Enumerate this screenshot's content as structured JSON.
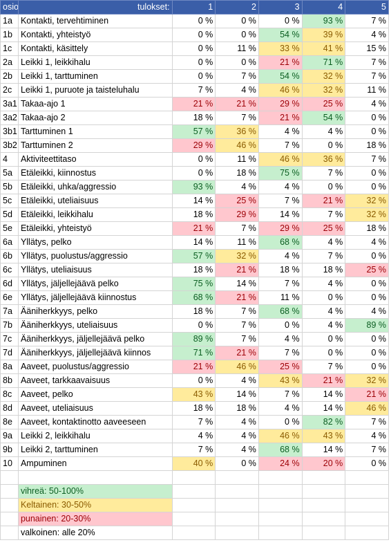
{
  "header": {
    "col_id": "osio",
    "col_label": "tulokset:",
    "cols": [
      "1",
      "2",
      "3",
      "4",
      "5"
    ]
  },
  "rows": [
    {
      "id": "1a",
      "name": "Kontakti, tervehtiminen",
      "v": [
        "0 %",
        "0 %",
        "0 %",
        "93 %",
        "7 %"
      ],
      "c": [
        "",
        "",
        "",
        "g",
        ""
      ]
    },
    {
      "id": "1b",
      "name": "Kontakti, yhteistyö",
      "v": [
        "0 %",
        "0 %",
        "54 %",
        "39 %",
        "4 %"
      ],
      "c": [
        "",
        "",
        "g",
        "y",
        ""
      ]
    },
    {
      "id": "1c",
      "name": "Kontakti, käsittely",
      "v": [
        "0 %",
        "11 %",
        "33 %",
        "41 %",
        "15 %"
      ],
      "c": [
        "",
        "",
        "y",
        "y",
        ""
      ]
    },
    {
      "id": "2a",
      "name": "Leikki 1, leikkihalu",
      "v": [
        "0 %",
        "0 %",
        "21 %",
        "71 %",
        "7 %"
      ],
      "c": [
        "",
        "",
        "r",
        "g",
        ""
      ]
    },
    {
      "id": "2b",
      "name": "Leikki 1, tarttuminen",
      "v": [
        "0 %",
        "7 %",
        "54 %",
        "32 %",
        "7 %"
      ],
      "c": [
        "",
        "",
        "g",
        "y",
        ""
      ]
    },
    {
      "id": "2c",
      "name": "Leikki 1, puruote ja taisteluhalu",
      "v": [
        "7 %",
        "4 %",
        "46 %",
        "32 %",
        "11 %"
      ],
      "c": [
        "",
        "",
        "y",
        "y",
        ""
      ]
    },
    {
      "id": "3a1",
      "name": "Takaa-ajo 1",
      "v": [
        "21 %",
        "21 %",
        "29 %",
        "25 %",
        "4 %"
      ],
      "c": [
        "r",
        "r",
        "r",
        "r",
        ""
      ]
    },
    {
      "id": "3a2",
      "name": "Takaa-ajo 2",
      "v": [
        "18 %",
        "7 %",
        "21 %",
        "54 %",
        "0 %"
      ],
      "c": [
        "",
        "",
        "r",
        "g",
        ""
      ]
    },
    {
      "id": "3b1",
      "name": "Tarttuminen 1",
      "v": [
        "57 %",
        "36 %",
        "4 %",
        "4 %",
        "0 %"
      ],
      "c": [
        "g",
        "y",
        "",
        "",
        ""
      ]
    },
    {
      "id": "3b2",
      "name": "Tarttuminen 2",
      "v": [
        "29 %",
        "46 %",
        "7 %",
        "0 %",
        "18 %"
      ],
      "c": [
        "r",
        "y",
        "",
        "",
        ""
      ]
    },
    {
      "id": "4",
      "name": "Aktiviteettitaso",
      "v": [
        "0 %",
        "11 %",
        "46 %",
        "36 %",
        "7 %"
      ],
      "c": [
        "",
        "",
        "y",
        "y",
        ""
      ]
    },
    {
      "id": "5a",
      "name": "Etäleikki, kiinnostus",
      "v": [
        "0 %",
        "18 %",
        "75 %",
        "7 %",
        "0 %"
      ],
      "c": [
        "",
        "",
        "g",
        "",
        ""
      ]
    },
    {
      "id": "5b",
      "name": "Etäleikki, uhka/aggressio",
      "v": [
        "93 %",
        "4 %",
        "4 %",
        "0 %",
        "0 %"
      ],
      "c": [
        "g",
        "",
        "",
        "",
        ""
      ]
    },
    {
      "id": "5c",
      "name": "Etäleikki, uteliaisuus",
      "v": [
        "14 %",
        "25 %",
        "7 %",
        "21 %",
        "32 %"
      ],
      "c": [
        "",
        "r",
        "",
        "r",
        "y"
      ]
    },
    {
      "id": "5d",
      "name": "Etäleikki, leikkihalu",
      "v": [
        "18 %",
        "29 %",
        "14 %",
        "7 %",
        "32 %"
      ],
      "c": [
        "",
        "r",
        "",
        "",
        "y"
      ]
    },
    {
      "id": "5e",
      "name": "Etäleikki, yhteistyö",
      "v": [
        "21 %",
        "7 %",
        "29 %",
        "25 %",
        "18 %"
      ],
      "c": [
        "r",
        "",
        "r",
        "r",
        ""
      ]
    },
    {
      "id": "6a",
      "name": "Yllätys, pelko",
      "v": [
        "14 %",
        "11 %",
        "68 %",
        "4 %",
        "4 %"
      ],
      "c": [
        "",
        "",
        "g",
        "",
        ""
      ]
    },
    {
      "id": "6b",
      "name": "Yllätys, puolustus/aggressio",
      "v": [
        "57 %",
        "32 %",
        "4 %",
        "7 %",
        "0 %"
      ],
      "c": [
        "g",
        "y",
        "",
        "",
        ""
      ]
    },
    {
      "id": "6c",
      "name": "Yllätys, uteliaisuus",
      "v": [
        "18 %",
        "21 %",
        "18 %",
        "18 %",
        "25 %"
      ],
      "c": [
        "",
        "r",
        "",
        "",
        "r"
      ]
    },
    {
      "id": "6d",
      "name": "Yllätys, jäljellejäävä pelko",
      "v": [
        "75 %",
        "14 %",
        "7 %",
        "4 %",
        "0 %"
      ],
      "c": [
        "g",
        "",
        "",
        "",
        ""
      ]
    },
    {
      "id": "6e",
      "name": "Yllätys, jäljellejäävä kiinnostus",
      "v": [
        "68 %",
        "21 %",
        "11 %",
        "0 %",
        "0 %"
      ],
      "c": [
        "g",
        "r",
        "",
        "",
        ""
      ]
    },
    {
      "id": "7a",
      "name": "Ääniherkkyys, pelko",
      "v": [
        "18 %",
        "7 %",
        "68 %",
        "4 %",
        "4 %"
      ],
      "c": [
        "",
        "",
        "g",
        "",
        ""
      ]
    },
    {
      "id": "7b",
      "name": "Ääniherkkyys, uteliaisuus",
      "v": [
        "0 %",
        "7 %",
        "0 %",
        "4 %",
        "89 %"
      ],
      "c": [
        "",
        "",
        "",
        "",
        "g"
      ]
    },
    {
      "id": "7c",
      "name": "Ääniherkkyys, jäljellejäävä pelko",
      "v": [
        "89 %",
        "7 %",
        "4 %",
        "0 %",
        "0 %"
      ],
      "c": [
        "g",
        "",
        "",
        "",
        ""
      ]
    },
    {
      "id": "7d",
      "name": "Ääniherkkyys, jäljellejäävä kiinnos",
      "v": [
        "71 %",
        "21 %",
        "7 %",
        "0 %",
        "0 %"
      ],
      "c": [
        "g",
        "r",
        "",
        "",
        ""
      ]
    },
    {
      "id": "8a",
      "name": "Aaveet,  puolustus/aggressio",
      "v": [
        "21 %",
        "46 %",
        "25 %",
        "7 %",
        "0 %"
      ],
      "c": [
        "r",
        "y",
        "r",
        "",
        ""
      ]
    },
    {
      "id": "8b",
      "name": "Aaveet, tarkkaavaisuus",
      "v": [
        "0 %",
        "4 %",
        "43 %",
        "21 %",
        "32 %"
      ],
      "c": [
        "",
        "",
        "y",
        "r",
        "y"
      ]
    },
    {
      "id": "8c",
      "name": "Aaveet, pelko",
      "v": [
        "43 %",
        "14 %",
        "7 %",
        "14 %",
        "21 %"
      ],
      "c": [
        "y",
        "",
        "",
        "",
        "r"
      ]
    },
    {
      "id": "8d",
      "name": "Aaveet, uteliaisuus",
      "v": [
        "18 %",
        "18 %",
        "4 %",
        "14 %",
        "46 %"
      ],
      "c": [
        "",
        "",
        "",
        "",
        "y"
      ]
    },
    {
      "id": "8e",
      "name": "Aaveet, kontaktinotto aaveeseen",
      "v": [
        "7 %",
        "4 %",
        "0 %",
        "82 %",
        "7 %"
      ],
      "c": [
        "",
        "",
        "",
        "g",
        ""
      ]
    },
    {
      "id": "9a",
      "name": "Leikki 2, leikkihalu",
      "v": [
        "4 %",
        "4 %",
        "46 %",
        "43 %",
        "4 %"
      ],
      "c": [
        "",
        "",
        "y",
        "y",
        ""
      ]
    },
    {
      "id": "9b",
      "name": "Leikki 2, tarttuminen",
      "v": [
        "7 %",
        "4 %",
        "68 %",
        "14 %",
        "7 %"
      ],
      "c": [
        "",
        "",
        "g",
        "",
        ""
      ]
    },
    {
      "id": "10",
      "name": "Ampuminen",
      "v": [
        "40 %",
        "0 %",
        "24 %",
        "20 %",
        "0 %"
      ],
      "c": [
        "y",
        "",
        "r",
        "r",
        ""
      ]
    }
  ],
  "legend": [
    {
      "text": "vihreä: 50-100%",
      "cls": "leg-g"
    },
    {
      "text": "Keltainen: 30-50%",
      "cls": "leg-y"
    },
    {
      "text": "punainen: 20-30%",
      "cls": "leg-r"
    },
    {
      "text": "valkoinen: alle 20%",
      "cls": ""
    }
  ]
}
